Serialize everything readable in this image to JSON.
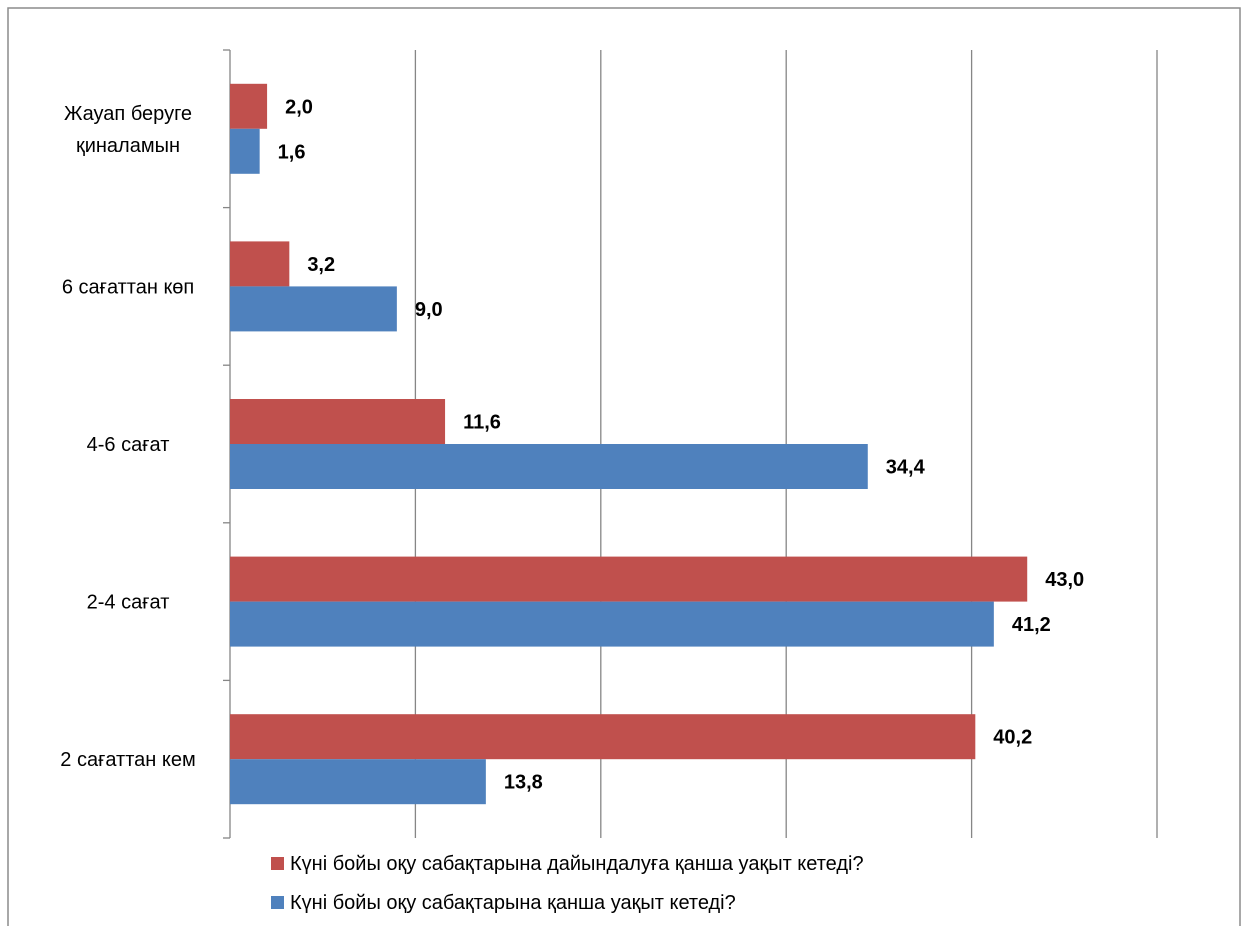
{
  "chart_data": {
    "type": "bar",
    "orientation": "horizontal",
    "categories": [
      "Жауап беруге қиналамын",
      "6 сағаттан көп",
      "4-6 сағат",
      "2-4 сағат",
      "2 сағаттан кем"
    ],
    "category_label_lines": [
      [
        "Жауап беруге",
        "қиналамын"
      ],
      [
        "6 сағаттан көп"
      ],
      [
        "4-6 сағат"
      ],
      [
        "2-4 сағат"
      ],
      [
        "2 сағаттан кем"
      ]
    ],
    "series": [
      {
        "name": "Күні бойы оқу сабақтарына дайындалуға қанша уақыт кетеді?",
        "color": "#C0504D",
        "values": [
          2.0,
          3.2,
          11.6,
          43.0,
          40.2
        ],
        "labels": [
          "2,0",
          "3,2",
          "11,6",
          "43,0",
          "40,2"
        ]
      },
      {
        "name": "Күні бойы оқу сабақтарына қанша уақыт кетеді?",
        "color": "#4F81BD",
        "values": [
          1.6,
          9.0,
          34.4,
          41.2,
          13.8
        ],
        "labels": [
          "1,6",
          "9,0",
          "34,4",
          "41,2",
          "13,8"
        ]
      }
    ],
    "xlim": [
      0,
      50
    ],
    "x_gridlines": [
      10,
      20,
      30,
      40,
      50
    ],
    "x_tick_labels_shown": false,
    "grid": true,
    "legend_position": "bottom",
    "title": "",
    "xlabel": "",
    "ylabel": ""
  }
}
